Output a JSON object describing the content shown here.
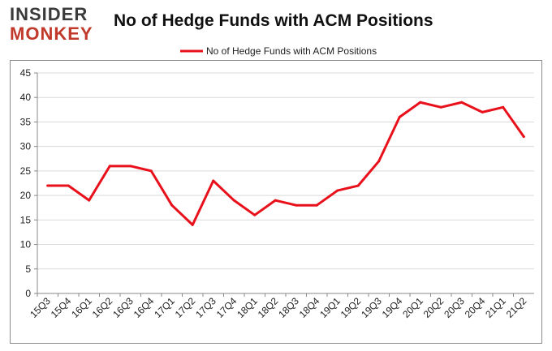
{
  "logo": {
    "line1": "INSIDER",
    "line2": "MONKEY"
  },
  "chart_data": {
    "type": "line",
    "title": "No of Hedge Funds with ACM Positions",
    "xlabel": "",
    "ylabel": "",
    "categories": [
      "15Q3",
      "15Q4",
      "16Q1",
      "16Q2",
      "16Q3",
      "16Q4",
      "17Q1",
      "17Q2",
      "17Q3",
      "17Q4",
      "18Q1",
      "18Q2",
      "18Q3",
      "18Q4",
      "19Q1",
      "19Q2",
      "19Q3",
      "19Q4",
      "20Q1",
      "20Q2",
      "20Q3",
      "20Q4",
      "21Q1",
      "21Q2"
    ],
    "series": [
      {
        "name": "No of Hedge Funds with ACM Positions",
        "color": "#e8101a",
        "values": [
          22,
          22,
          19,
          26,
          26,
          25,
          18,
          14,
          23,
          19,
          16,
          19,
          18,
          18,
          21,
          22,
          27,
          36,
          39,
          38,
          39,
          37,
          38,
          32
        ]
      }
    ],
    "ylim": [
      0,
      45
    ],
    "yticks": [
      0,
      5,
      10,
      15,
      20,
      25,
      30,
      35,
      40,
      45
    ],
    "grid": true,
    "legend": "top-center"
  }
}
